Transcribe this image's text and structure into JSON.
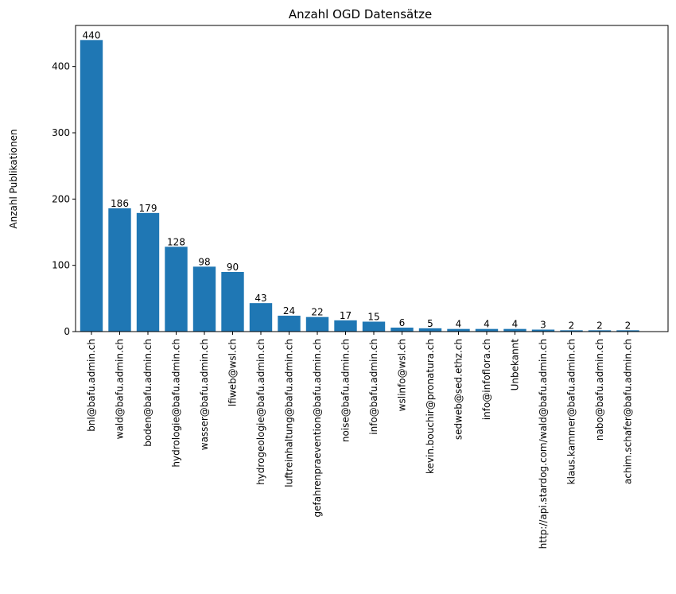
{
  "chart_data": {
    "type": "bar",
    "title": "Anzahl OGD Datensätze",
    "xlabel": "",
    "ylabel": "Anzahl Publikationen",
    "ylim": [
      0,
      462
    ],
    "yticks": [
      0,
      100,
      200,
      300,
      400
    ],
    "grid": false,
    "bar_color": "#1f77b4",
    "show_value_labels": true,
    "categories": [
      "bnl@bafu.admin.ch",
      "wald@bafu.admin.ch",
      "boden@bafu.admin.ch",
      "hydrologie@bafu.admin.ch",
      "wasser@bafu.admin.ch",
      "lfiweb@wsl.ch",
      "hydrogeologie@bafu.admin.ch",
      "luftreinhaltung@bafu.admin.ch",
      "gefahrenpraevention@bafu.admin.ch",
      "noise@bafu.admin.ch",
      "info@bafu.admin.ch",
      "wslinfo@wsl.ch",
      "kevin.bouchir@pronatura.ch",
      "sedweb@sed.ethz.ch",
      "info@infoflora.ch",
      "Unbekannt",
      "http://api.stardog.com/wald@bafu.admin.ch",
      "klaus.kammer@bafu.admin.ch",
      "nabo@bafu.admin.ch",
      "achim.schafer@bafu.admin.ch"
    ],
    "values": [
      440,
      186,
      179,
      128,
      98,
      90,
      43,
      24,
      22,
      17,
      15,
      6,
      5,
      4,
      4,
      4,
      3,
      2,
      2,
      2
    ]
  }
}
